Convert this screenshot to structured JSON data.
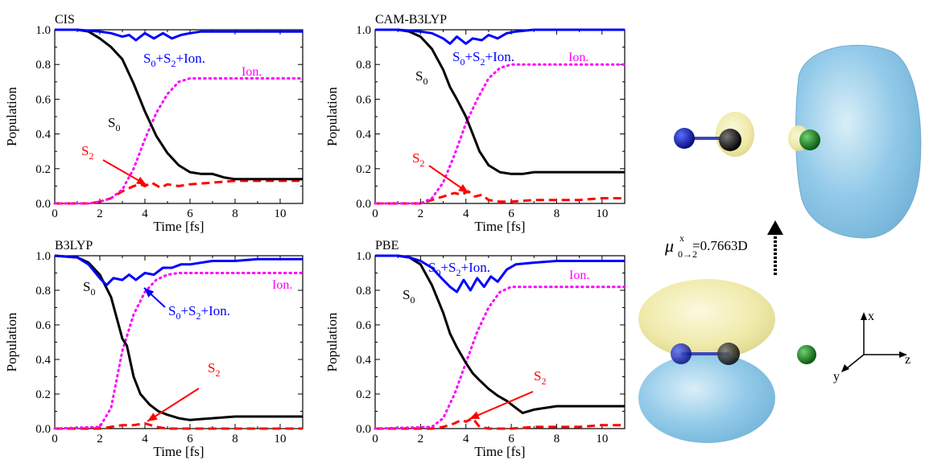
{
  "chart_data": [
    {
      "type": "line",
      "title": "CIS",
      "xlabel": "Time [fs]",
      "ylabel": "Population",
      "xlim": [
        0,
        11
      ],
      "ylim": [
        0,
        1
      ],
      "xticks": [
        "0",
        "2",
        "4",
        "6",
        "8",
        "10"
      ],
      "yticks": [
        "0.0",
        "0.2",
        "0.4",
        "0.6",
        "0.8",
        "1.0"
      ],
      "grid": false,
      "series": [
        {
          "name": "S0",
          "label_main": "S",
          "label_sub": "0",
          "color": "#000000",
          "style": "solid",
          "x": [
            0,
            1,
            1.5,
            2,
            2.5,
            3,
            3.5,
            4,
            4.5,
            5,
            5.5,
            6,
            6.5,
            7,
            7.5,
            8,
            9,
            10,
            11
          ],
          "y": [
            1.0,
            1.0,
            0.99,
            0.95,
            0.9,
            0.83,
            0.69,
            0.53,
            0.39,
            0.29,
            0.22,
            0.18,
            0.17,
            0.17,
            0.15,
            0.14,
            0.14,
            0.14,
            0.14
          ]
        },
        {
          "name": "S0+S2+Ion.",
          "label_main": "S",
          "label_sub": "0",
          "label_rest_main": "+S",
          "label_rest_sub": "2",
          "label_tail": "+Ion.",
          "color": "#0000ff",
          "style": "solid",
          "x": [
            0,
            1,
            2,
            2.5,
            3,
            3.3,
            3.6,
            4,
            4.4,
            4.8,
            5.2,
            5.6,
            6,
            6.5,
            7,
            8,
            9,
            10,
            11
          ],
          "y": [
            1.0,
            1.0,
            0.99,
            0.98,
            0.96,
            0.97,
            0.94,
            0.98,
            0.95,
            0.98,
            0.95,
            0.97,
            0.98,
            0.99,
            0.99,
            0.99,
            0.99,
            0.99,
            0.99
          ]
        },
        {
          "name": "Ion.",
          "color": "#ff00ff",
          "style": "dotted",
          "x": [
            0,
            1.5,
            2,
            2.5,
            3,
            3.5,
            4,
            4.5,
            5,
            5.5,
            6,
            7,
            8,
            9,
            10,
            11
          ],
          "y": [
            0,
            0,
            0.01,
            0.03,
            0.08,
            0.2,
            0.37,
            0.52,
            0.63,
            0.7,
            0.72,
            0.72,
            0.72,
            0.72,
            0.72,
            0.72
          ]
        },
        {
          "name": "S2",
          "color": "#ff0000",
          "style": "dashed",
          "x": [
            0,
            1.5,
            2,
            2.5,
            3,
            3.5,
            3.8,
            4,
            4.3,
            4.7,
            5,
            5.5,
            6,
            7,
            8,
            9,
            10,
            11
          ],
          "y": [
            0,
            0,
            0.01,
            0.03,
            0.07,
            0.1,
            0.11,
            0.1,
            0.12,
            0.09,
            0.11,
            0.1,
            0.11,
            0.12,
            0.13,
            0.13,
            0.13,
            0.13
          ]
        }
      ]
    },
    {
      "type": "line",
      "title": "CAM-B3LYP",
      "xlabel": "Time [fs]",
      "ylabel": "Population",
      "xlim": [
        0,
        11
      ],
      "ylim": [
        0,
        1
      ],
      "xticks": [
        "0",
        "2",
        "4",
        "6",
        "8",
        "10"
      ],
      "yticks": [
        "0.0",
        "0.2",
        "0.4",
        "0.6",
        "0.8",
        "1.0"
      ],
      "grid": false,
      "series": [
        {
          "name": "S0",
          "color": "#000000",
          "style": "solid",
          "x": [
            0,
            1,
            1.5,
            2,
            2.5,
            3,
            3.3,
            3.6,
            4,
            4.3,
            4.6,
            5,
            5.5,
            6,
            6.5,
            7,
            8,
            9,
            10,
            11
          ],
          "y": [
            1.0,
            1.0,
            0.99,
            0.96,
            0.89,
            0.77,
            0.67,
            0.6,
            0.5,
            0.4,
            0.3,
            0.22,
            0.18,
            0.17,
            0.17,
            0.18,
            0.18,
            0.18,
            0.18,
            0.18
          ]
        },
        {
          "name": "S0+S2+Ion.",
          "color": "#0000ff",
          "style": "solid",
          "x": [
            0,
            1,
            2,
            2.5,
            3,
            3.3,
            3.6,
            4,
            4.3,
            4.7,
            5,
            5.4,
            5.8,
            6.2,
            7,
            8,
            9,
            10,
            11
          ],
          "y": [
            1.0,
            1.0,
            0.99,
            0.98,
            0.95,
            0.92,
            0.96,
            0.92,
            0.95,
            0.94,
            0.97,
            0.95,
            0.98,
            0.99,
            1.0,
            1.0,
            1.0,
            1.0,
            1.0
          ]
        },
        {
          "name": "Ion.",
          "color": "#ff00ff",
          "style": "dotted",
          "x": [
            0,
            2,
            2.5,
            3,
            3.5,
            4,
            4.5,
            5,
            5.5,
            6,
            7,
            8,
            9,
            10,
            11
          ],
          "y": [
            0,
            0,
            0.03,
            0.12,
            0.28,
            0.46,
            0.6,
            0.72,
            0.78,
            0.8,
            0.8,
            0.8,
            0.8,
            0.8,
            0.8
          ]
        },
        {
          "name": "S2",
          "color": "#ff0000",
          "style": "dashed",
          "x": [
            0,
            2,
            2.5,
            3,
            3.5,
            3.8,
            4.1,
            4.4,
            4.7,
            5,
            5.5,
            6,
            7,
            8,
            9,
            10,
            11
          ],
          "y": [
            0,
            0,
            0.02,
            0.04,
            0.06,
            0.05,
            0.07,
            0.04,
            0.05,
            0.02,
            0.01,
            0.01,
            0.02,
            0.02,
            0.02,
            0.03,
            0.03
          ]
        }
      ]
    },
    {
      "type": "line",
      "title": "B3LYP",
      "xlabel": "Time [fs]",
      "ylabel": "Population",
      "xlim": [
        0,
        11
      ],
      "ylim": [
        0,
        1
      ],
      "xticks": [
        "0",
        "2",
        "4",
        "6",
        "8",
        "10"
      ],
      "yticks": [
        "0.0",
        "0.2",
        "0.4",
        "0.6",
        "0.8",
        "1.0"
      ],
      "grid": false,
      "series": [
        {
          "name": "S0",
          "color": "#000000",
          "style": "solid",
          "x": [
            0,
            1,
            1.5,
            2,
            2.5,
            3,
            3.2,
            3.5,
            3.8,
            4.2,
            4.6,
            5,
            5.5,
            6,
            7,
            8,
            9,
            10,
            11
          ],
          "y": [
            1.0,
            0.99,
            0.96,
            0.89,
            0.76,
            0.52,
            0.48,
            0.3,
            0.2,
            0.14,
            0.1,
            0.08,
            0.06,
            0.05,
            0.06,
            0.07,
            0.07,
            0.07,
            0.07
          ]
        },
        {
          "name": "S0+S2+Ion.",
          "color": "#0000ff",
          "style": "solid",
          "x": [
            0,
            1,
            1.5,
            2,
            2.3,
            2.6,
            3,
            3.3,
            3.6,
            4,
            4.4,
            4.8,
            5.2,
            5.6,
            6,
            7,
            8,
            9,
            10,
            11
          ],
          "y": [
            1.0,
            0.99,
            0.95,
            0.87,
            0.83,
            0.87,
            0.86,
            0.89,
            0.86,
            0.9,
            0.89,
            0.93,
            0.93,
            0.95,
            0.95,
            0.97,
            0.97,
            0.98,
            0.98,
            0.98
          ]
        },
        {
          "name": "Ion.",
          "color": "#ff00ff",
          "style": "dotted",
          "x": [
            0,
            2,
            2.5,
            3,
            3.5,
            4,
            4.5,
            5,
            5.5,
            6,
            7,
            8,
            9,
            10,
            11
          ],
          "y": [
            0,
            0.01,
            0.12,
            0.45,
            0.66,
            0.79,
            0.86,
            0.89,
            0.9,
            0.9,
            0.9,
            0.9,
            0.9,
            0.9,
            0.9
          ]
        },
        {
          "name": "S2",
          "color": "#ff0000",
          "style": "dashed",
          "x": [
            0,
            2,
            2.5,
            3,
            3.5,
            4,
            4.5,
            5,
            6,
            7,
            8,
            9,
            10,
            11
          ],
          "y": [
            0,
            0,
            0.01,
            0.02,
            0.02,
            0.03,
            0.01,
            0.0,
            0.0,
            0.0,
            0.0,
            0.0,
            0.0,
            0.0
          ]
        }
      ]
    },
    {
      "type": "line",
      "title": "PBE",
      "xlabel": "Time [fs]",
      "ylabel": "Population",
      "xlim": [
        0,
        11
      ],
      "ylim": [
        0,
        1
      ],
      "xticks": [
        "0",
        "2",
        "4",
        "6",
        "8",
        "10"
      ],
      "yticks": [
        "0.0",
        "0.2",
        "0.4",
        "0.6",
        "0.8",
        "1.0"
      ],
      "grid": false,
      "series": [
        {
          "name": "S0",
          "color": "#000000",
          "style": "solid",
          "x": [
            0,
            1,
            1.5,
            2,
            2.5,
            3,
            3.3,
            3.6,
            4,
            4.3,
            4.6,
            5,
            5.4,
            5.8,
            6.2,
            6.5,
            7,
            8,
            9,
            10,
            11
          ],
          "y": [
            1.0,
            1.0,
            0.99,
            0.95,
            0.83,
            0.67,
            0.55,
            0.47,
            0.38,
            0.32,
            0.28,
            0.23,
            0.19,
            0.16,
            0.12,
            0.09,
            0.11,
            0.13,
            0.13,
            0.13,
            0.13
          ]
        },
        {
          "name": "S0+S2+Ion.",
          "color": "#0000ff",
          "style": "solid",
          "x": [
            0,
            1,
            1.5,
            2,
            2.5,
            3,
            3.3,
            3.6,
            3.9,
            4.2,
            4.5,
            4.8,
            5.1,
            5.4,
            5.8,
            6.2,
            7,
            8,
            9,
            10,
            11
          ],
          "y": [
            1.0,
            1.0,
            0.99,
            0.97,
            0.93,
            0.86,
            0.82,
            0.79,
            0.86,
            0.8,
            0.87,
            0.82,
            0.88,
            0.85,
            0.92,
            0.95,
            0.96,
            0.97,
            0.97,
            0.97,
            0.97
          ]
        },
        {
          "name": "Ion.",
          "color": "#ff00ff",
          "style": "dotted",
          "x": [
            0,
            2.5,
            3,
            3.5,
            4,
            4.5,
            5,
            5.5,
            6,
            7,
            8,
            9,
            10,
            11
          ],
          "y": [
            0,
            0.01,
            0.06,
            0.2,
            0.38,
            0.56,
            0.7,
            0.79,
            0.82,
            0.82,
            0.82,
            0.82,
            0.82,
            0.82
          ]
        },
        {
          "name": "S2",
          "color": "#ff0000",
          "style": "dashed",
          "x": [
            0,
            2.5,
            3,
            3.5,
            3.8,
            4,
            4.3,
            4.6,
            5,
            6,
            7,
            8,
            9,
            10,
            11
          ],
          "y": [
            0,
            0.0,
            0.01,
            0.03,
            0.05,
            0.04,
            0.06,
            0.01,
            0.0,
            0.0,
            0.01,
            0.01,
            0.01,
            0.02,
            0.02
          ]
        }
      ]
    }
  ],
  "dipole_label": {
    "mu": "μ",
    "sup": "x",
    "sub": "0→2",
    "value": "=0.7663D"
  },
  "axes_labels": {
    "x": "x",
    "y": "y",
    "z": "z"
  },
  "colors": {
    "s0": "#000000",
    "total": "#0000ff",
    "ion": "#ff00ff",
    "s2": "#ff0000",
    "lobe_blue": "#86c4e6",
    "lobe_yellow": "#f2eeaa"
  }
}
